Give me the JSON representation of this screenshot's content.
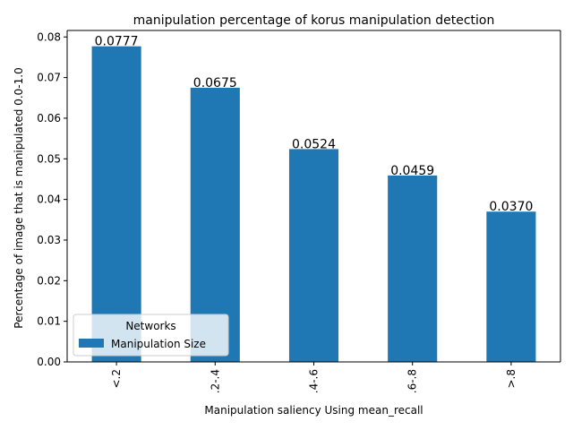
{
  "chart_data": {
    "type": "bar",
    "title": "manipulation percentage of korus manipulation detection",
    "xlabel": "Manipulation saliency Using mean_recall",
    "ylabel": "Percentage of image that is manipulated 0.0-1.0",
    "categories": [
      "<.2",
      ".2-.4",
      ".4-.6",
      ".6-.8",
      ">.8"
    ],
    "series": [
      {
        "name": "Manipulation Size",
        "values": [
          0.0777,
          0.0675,
          0.0524,
          0.0459,
          0.037
        ],
        "color": "#1f77b4"
      }
    ],
    "data_labels": [
      "0.0777",
      "0.0675",
      "0.0524",
      "0.0459",
      "0.0370"
    ],
    "yticks": [
      "0.00",
      "0.01",
      "0.02",
      "0.03",
      "0.04",
      "0.05",
      "0.06",
      "0.07",
      "0.08"
    ],
    "ytick_values": [
      0,
      0.01,
      0.02,
      0.03,
      0.04,
      0.05,
      0.06,
      0.07,
      0.08
    ],
    "ylim": [
      0,
      0.0816
    ],
    "grid": false,
    "legend": {
      "title": "Networks",
      "placement": "lower-left"
    }
  }
}
